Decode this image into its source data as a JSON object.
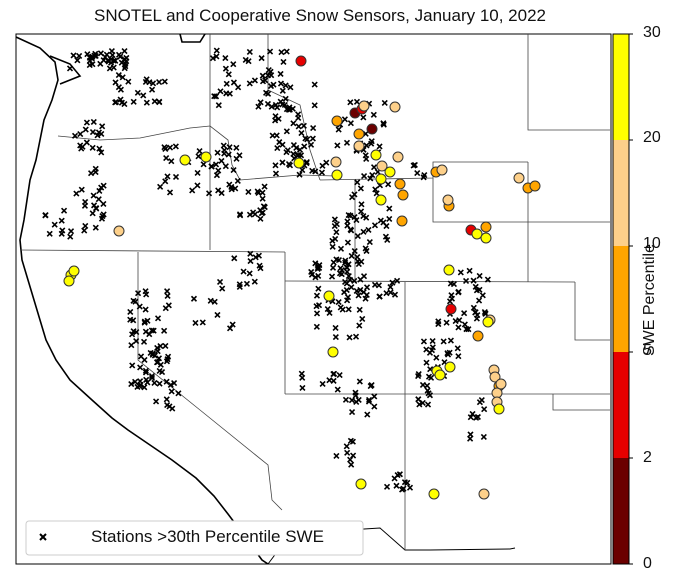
{
  "title": "SNOTEL and Cooperative Snow Sensors, January 10, 2022",
  "legend": {
    "label": "Stations >30th Percentile SWE",
    "marker": "x"
  },
  "colorbar": {
    "label": "SWE Percentile",
    "ticks": [
      "0",
      "2",
      "5",
      "10",
      "20",
      "30"
    ],
    "bins": [
      {
        "range": "0-2",
        "color": "#6b0000"
      },
      {
        "range": "2-5",
        "color": "#e60000"
      },
      {
        "range": "5-10",
        "color": "#ffa500"
      },
      {
        "range": "10-20",
        "color": "#fdd08a"
      },
      {
        "range": "20-30",
        "color": "#ffff00"
      }
    ]
  },
  "stations_below_30": [
    {
      "bin": "0-2",
      "count": 2
    },
    {
      "bin": "2-5",
      "count": 4
    },
    {
      "bin": "5-10",
      "count": 12
    },
    {
      "bin": "10-20",
      "count": 17
    },
    {
      "bin": "20-30",
      "count": 23
    }
  ]
}
